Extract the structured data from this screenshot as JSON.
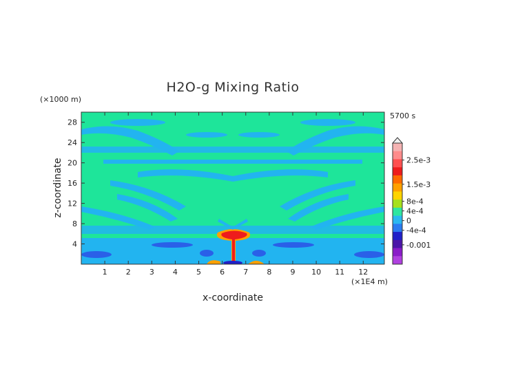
{
  "chart_data": {
    "type": "heatmap",
    "title": "H2O-g Mixing Ratio",
    "xlabel": "x-coordinate",
    "ylabel": "z-coordinate",
    "x_unit": "(×1E4 m)",
    "y_unit": "(×1000 m)",
    "time_label": "5700 s",
    "xlim": [
      0,
      12.9
    ],
    "ylim": [
      0,
      30
    ],
    "x_ticks": [
      1,
      2,
      3,
      4,
      5,
      6,
      7,
      8,
      9,
      10,
      11,
      12
    ],
    "x_tick_labels": [
      "1",
      "2",
      "3",
      "4",
      "5",
      "6",
      "7",
      "8",
      "9",
      "10",
      "11",
      "12"
    ],
    "y_ticks": [
      4,
      8,
      12,
      16,
      20,
      24,
      28
    ],
    "y_tick_labels": [
      "4",
      "8",
      "12",
      "16",
      "20",
      "24",
      "28"
    ],
    "colorbar": {
      "labels": [
        {
          "text": "2.5e-3",
          "value": 0.0025
        },
        {
          "text": "1.5e-3",
          "value": 0.0015
        },
        {
          "text": "8e-4",
          "value": 0.0008
        },
        {
          "text": "4e-4",
          "value": 0.0004
        },
        {
          "text": "0",
          "value": 0
        },
        {
          "text": "-4e-4",
          "value": -0.0004
        },
        {
          "text": "-0.001",
          "value": -0.001
        }
      ],
      "levels": [
        {
          "color": "#f5b3b3"
        },
        {
          "color": "#ff8c8c"
        },
        {
          "color": "#ff5050"
        },
        {
          "color": "#ee1c1c"
        },
        {
          "color": "#ff6a00"
        },
        {
          "color": "#ffa000"
        },
        {
          "color": "#ffd400"
        },
        {
          "color": "#a6e01c"
        },
        {
          "color": "#2ee6a0"
        },
        {
          "color": "#2ab8f0"
        },
        {
          "color": "#2a7cf0"
        },
        {
          "color": "#2020c8"
        },
        {
          "color": "#4b16a8"
        },
        {
          "color": "#8a1cc8"
        },
        {
          "color": "#b040e0"
        }
      ]
    },
    "field_colors": {
      "background": "#1ee59a",
      "negative_band": "#22b4f0",
      "positive_core": "#ee1c1c",
      "positive_edge": "#ffa000",
      "strong_negative": "#2a60e8"
    }
  }
}
